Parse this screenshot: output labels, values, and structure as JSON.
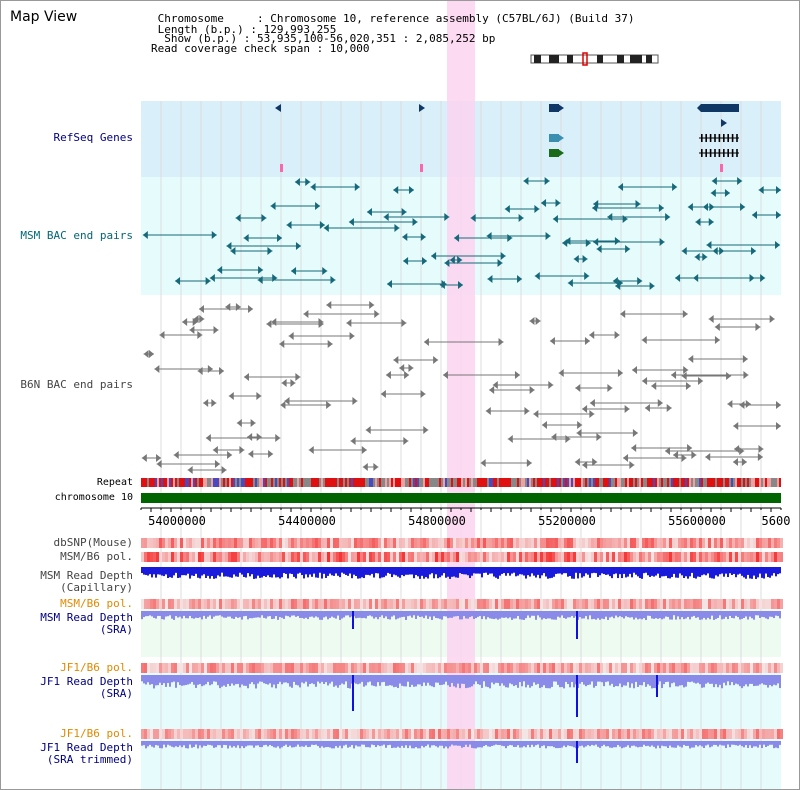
{
  "page": {
    "title": "Map View"
  },
  "header": {
    "chromosome": " Chromosome     : Chromosome 10, reference assembly (C57BL/6J) (Build 37)",
    "length": " Length (b.p.) : 129,993,255",
    "show": "  Show (b.p.) : 53,935,100-56,020,351 : 2,085,252 bp",
    "coverage": "Read coverage check span : 10,000"
  },
  "tracks": {
    "refseq": "RefSeq Genes",
    "msm_bac": "MSM BAC end pairs",
    "b6n_bac": "B6N BAC end pairs",
    "repeat": "Repeat",
    "chromosome": "chromosome 10",
    "dbsnp": "dbSNP(Mouse)",
    "msm_b6_pol": "MSM/B6 pol.",
    "msm_depth_cap_1": "MSM Read Depth",
    "msm_depth_cap_2": "(Capillary)",
    "msm_b6_pol_sra": "MSM/B6 pol.",
    "msm_depth_sra_1": "MSM Read Depth",
    "msm_depth_sra_2": "(SRA)",
    "jf1_b6_pol": "JF1/B6 pol.",
    "jf1_depth_1": "JF1 Read Depth",
    "jf1_depth_2": "(SRA)",
    "jf1_b6_pol_trim": "JF1/B6 pol.",
    "jf1_trim_1": "JF1 Read Depth",
    "jf1_trim_2": "(SRA trimmed)"
  },
  "axis": {
    "ticks": [
      "54000000",
      "54400000",
      "54800000",
      "55200000",
      "55600000",
      "5600"
    ]
  },
  "colors": {
    "refseq_bg": "#d9f0fb",
    "msm_bg": "#e6fbfb",
    "gene_dark": "#0f3866",
    "gene_teal": "#3a8fb0",
    "gene_green": "#1a6b1a",
    "highlight": "#fbd4f0",
    "chrom_bar": "#006400",
    "label_blue": "#000080",
    "label_teal": "#006677",
    "label_orange": "#e08a00",
    "depth_blue": "#1a1adb",
    "depth_light": "#8a8ae8"
  }
}
